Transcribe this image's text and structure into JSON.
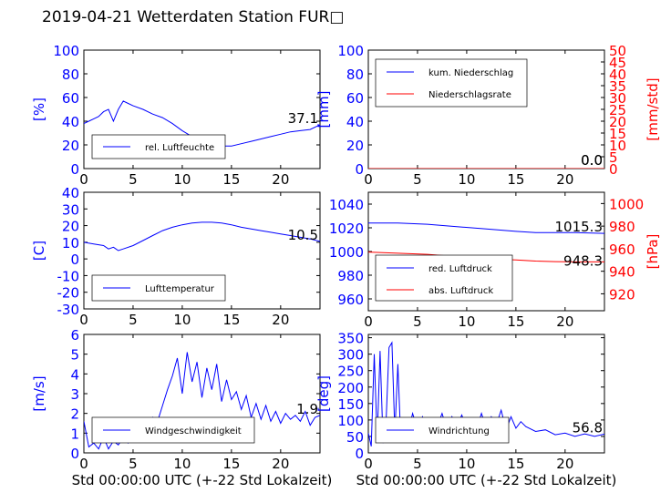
{
  "page_title": "2019-04-21 Wetterdaten Station FUR□",
  "colors": {
    "primary": "#0000ff",
    "secondary": "#ff0000",
    "frame": "#000000"
  },
  "xlabel": "Std 00:00:00 UTC (+-22 Std Lokalzeit)",
  "chart_data": [
    {
      "type": "line",
      "title": "",
      "xlabel": "",
      "ylabel": "[%]",
      "xlim": [
        0,
        24
      ],
      "ylim": [
        0,
        100
      ],
      "xticks": [
        0,
        5,
        10,
        15,
        20
      ],
      "yticks": [
        0,
        20,
        40,
        60,
        80,
        100
      ],
      "legend": {
        "placement": "lower-left",
        "entries": [
          "rel. Luftfeuchte"
        ]
      },
      "last_value_label": "37.1",
      "series": [
        {
          "name": "rel. Luftfeuchte",
          "color": "#0000ff",
          "x": [
            0,
            0.5,
            1,
            1.5,
            2,
            2.5,
            3,
            3.5,
            4,
            4.5,
            5,
            6,
            7,
            8,
            9,
            10,
            11,
            12,
            13,
            14,
            15,
            16,
            17,
            18,
            19,
            20,
            21,
            22,
            23,
            24
          ],
          "y": [
            38,
            40,
            42,
            44,
            48,
            50,
            40,
            50,
            57,
            55,
            53,
            50,
            46,
            43,
            38,
            32,
            27,
            23,
            21,
            19,
            19,
            21,
            23,
            25,
            27,
            29,
            31,
            32,
            33,
            37
          ]
        }
      ]
    },
    {
      "type": "line",
      "title": "",
      "xlabel": "",
      "ylabel": "[mm]",
      "ylabel_right": "[mm/std]",
      "xlim": [
        0,
        24
      ],
      "ylim": [
        0,
        100
      ],
      "ylim_right": [
        0,
        50
      ],
      "xticks": [
        0,
        5,
        10,
        15,
        20
      ],
      "yticks": [
        0,
        20,
        40,
        60,
        80,
        100
      ],
      "yticks_right": [
        0,
        5,
        10,
        15,
        20,
        25,
        30,
        35,
        40,
        45,
        50
      ],
      "legend": {
        "placement": "top-left",
        "entries": [
          "kum. Niederschlag",
          "Niederschlagsrate"
        ]
      },
      "last_value_label": "0.0",
      "last_value_label_right": "0.0",
      "series": [
        {
          "name": "kum. Niederschlag",
          "color": "#0000ff",
          "axis": "left",
          "x": [
            0,
            24
          ],
          "y": [
            0,
            0
          ]
        },
        {
          "name": "Niederschlagsrate",
          "color": "#ff0000",
          "axis": "right",
          "x": [
            0,
            24
          ],
          "y": [
            0,
            0
          ]
        }
      ]
    },
    {
      "type": "line",
      "title": "",
      "xlabel": "",
      "ylabel": "[C]",
      "xlim": [
        0,
        24
      ],
      "ylim": [
        -30,
        40
      ],
      "xticks": [
        0,
        5,
        10,
        15,
        20
      ],
      "yticks": [
        -30,
        -20,
        -10,
        0,
        10,
        20,
        30,
        40
      ],
      "legend": {
        "placement": "lower-left",
        "entries": [
          "Lufttemperatur"
        ]
      },
      "last_value_label": "10.5",
      "series": [
        {
          "name": "Lufttemperatur",
          "color": "#0000ff",
          "x": [
            0,
            1,
            2,
            2.5,
            3,
            3.5,
            4,
            5,
            6,
            7,
            8,
            9,
            10,
            11,
            12,
            13,
            14,
            15,
            16,
            17,
            18,
            19,
            20,
            21,
            22,
            23,
            24
          ],
          "y": [
            10,
            9,
            8,
            6,
            7,
            5,
            6,
            8,
            11,
            14,
            17,
            19,
            20.5,
            21.5,
            22,
            22,
            21.5,
            20.5,
            19,
            18,
            17,
            16,
            15,
            14,
            13,
            12,
            10.5
          ]
        }
      ]
    },
    {
      "type": "line",
      "title": "",
      "xlabel": "",
      "ylabel": "",
      "ylabel_right": "[hPa]",
      "xlim": [
        0,
        24
      ],
      "ylim": [
        950,
        1050
      ],
      "ylim_right": [
        905,
        1010
      ],
      "xticks": [
        0,
        5,
        10,
        15,
        20
      ],
      "yticks": [
        960,
        980,
        1000,
        1020,
        1040
      ],
      "yticks_right": [
        920,
        940,
        960,
        980,
        1000
      ],
      "legend": {
        "placement": "lower-left",
        "entries": [
          "red. Luftdruck",
          "abs. Luftdruck"
        ]
      },
      "last_value_label": "1015.3",
      "last_value_label_right": "948.3",
      "series": [
        {
          "name": "red. Luftdruck",
          "color": "#0000ff",
          "axis": "left",
          "x": [
            0,
            3,
            6,
            9,
            12,
            15,
            17,
            19,
            21,
            24
          ],
          "y": [
            1024,
            1024,
            1023,
            1021,
            1019,
            1017,
            1016,
            1016,
            1016,
            1015.3
          ]
        },
        {
          "name": "abs. Luftdruck",
          "color": "#ff0000",
          "axis": "right",
          "x": [
            0,
            3,
            6,
            9,
            12,
            15,
            17,
            19,
            21,
            24
          ],
          "y": [
            957,
            956,
            955,
            953,
            951,
            950,
            949,
            948.5,
            948.3,
            948.3
          ]
        }
      ]
    },
    {
      "type": "line",
      "title": "",
      "xlabel": "Std 00:00:00 UTC (+-22 Std Lokalzeit)",
      "ylabel": "[m/s]",
      "xlim": [
        0,
        24
      ],
      "ylim": [
        0,
        6
      ],
      "xticks": [
        0,
        5,
        10,
        15,
        20
      ],
      "yticks": [
        0,
        1,
        2,
        3,
        4,
        5,
        6
      ],
      "legend": {
        "placement": "lower-left",
        "entries": [
          "Windgeschwindigkeit"
        ]
      },
      "last_value_label": "1.9",
      "series": [
        {
          "name": "Windgeschwindigkeit",
          "color": "#0000ff",
          "x": [
            0,
            0.5,
            1,
            1.5,
            2,
            2.5,
            3,
            3.5,
            4,
            4.5,
            5,
            5.5,
            6,
            6.5,
            7,
            7.5,
            8,
            8.5,
            9,
            9.5,
            10,
            10.5,
            11,
            11.5,
            12,
            12.5,
            13,
            13.5,
            14,
            14.5,
            15,
            15.5,
            16,
            16.5,
            17,
            17.5,
            18,
            18.5,
            19,
            19.5,
            20,
            20.5,
            21,
            21.5,
            22,
            22.5,
            23,
            23.5,
            24
          ],
          "y": [
            1.6,
            0.3,
            0.5,
            0.2,
            0.8,
            0.2,
            0.6,
            0.4,
            0.8,
            0.5,
            0.9,
            0.7,
            1.3,
            1.0,
            1.8,
            1.6,
            2.4,
            3.2,
            3.9,
            4.8,
            3.0,
            5.1,
            3.6,
            4.6,
            2.8,
            4.3,
            3.2,
            4.5,
            2.6,
            3.7,
            2.7,
            3.1,
            2.2,
            2.9,
            1.8,
            2.5,
            1.7,
            2.4,
            1.6,
            2.1,
            1.5,
            2.0,
            1.7,
            1.9,
            1.6,
            2.1,
            1.4,
            1.8,
            1.9
          ]
        }
      ]
    },
    {
      "type": "line",
      "title": "",
      "xlabel": "Std 00:00:00 UTC (+-22 Std Lokalzeit)",
      "ylabel": "[deg]",
      "xlim": [
        0,
        24
      ],
      "ylim": [
        0,
        360
      ],
      "xticks": [
        0,
        5,
        10,
        15,
        20
      ],
      "yticks": [
        0,
        50,
        100,
        150,
        200,
        250,
        300,
        350
      ],
      "legend": {
        "placement": "lower-left",
        "entries": [
          "Windrichtung"
        ]
      },
      "last_value_label": "56.8",
      "series": [
        {
          "name": "Windrichtung",
          "color": "#0000ff",
          "x": [
            0,
            0.3,
            0.6,
            0.9,
            1.2,
            1.5,
            1.8,
            2.1,
            2.4,
            2.7,
            3.0,
            3.3,
            3.6,
            4,
            4.5,
            5,
            5.5,
            6,
            6.5,
            7,
            7.5,
            8,
            8.5,
            9,
            9.5,
            10,
            10.5,
            11,
            11.5,
            12,
            12.5,
            13,
            13.5,
            14,
            14.5,
            15,
            15.5,
            16,
            17,
            18,
            19,
            20,
            21,
            22,
            23,
            24
          ],
          "y": [
            60,
            20,
            300,
            40,
            310,
            30,
            90,
            320,
            335,
            60,
            270,
            40,
            100,
            60,
            120,
            70,
            110,
            75,
            105,
            80,
            120,
            70,
            110,
            80,
            115,
            75,
            100,
            70,
            120,
            75,
            110,
            85,
            130,
            70,
            110,
            75,
            95,
            80,
            65,
            70,
            55,
            60,
            50,
            58,
            50,
            57
          ]
        }
      ]
    }
  ]
}
